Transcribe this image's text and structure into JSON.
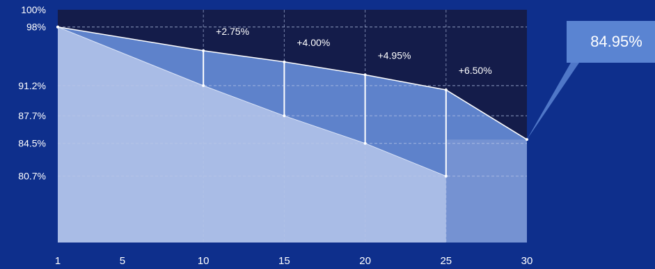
{
  "chart_data": {
    "type": "area",
    "x_ticks": [
      "1",
      "5",
      "10",
      "15",
      "20",
      "25",
      "30"
    ],
    "y_ticks": [
      "100%",
      "98%",
      "91.2%",
      "87.7%",
      "84.5%",
      "80.7%"
    ],
    "xlim": [
      1,
      30
    ],
    "ylim": [
      73,
      100
    ],
    "grid": true,
    "series": [
      {
        "x": [
          1,
          10,
          15,
          20,
          25,
          30
        ],
        "y": [
          98,
          95.25,
          93.95,
          92.45,
          90.7,
          84.95
        ]
      },
      {
        "x": [
          1,
          10,
          15,
          20,
          25
        ],
        "y": [
          98,
          91.2,
          87.7,
          84.5,
          80.7
        ]
      }
    ],
    "gains": [
      {
        "x": 10,
        "low": 91.2,
        "label": "+2.75%"
      },
      {
        "x": 15,
        "low": 87.7,
        "label": "+4.00%"
      },
      {
        "x": 20,
        "low": 84.5,
        "label": "+4.95%"
      },
      {
        "x": 25,
        "low": 80.7,
        "label": "+6.50%"
      }
    ],
    "callout": {
      "x": 30,
      "y": 84.95,
      "label": "84.95%"
    },
    "colors": {
      "background": "#0e2f8c",
      "plot_bg": "#141c4a",
      "upper_fill": "#5e82cb",
      "lower_fill": "#a9bce6",
      "tail_fill": "#7592d2",
      "callout_bg": "#5a84d2",
      "grid": "#b9c6e8"
    }
  }
}
